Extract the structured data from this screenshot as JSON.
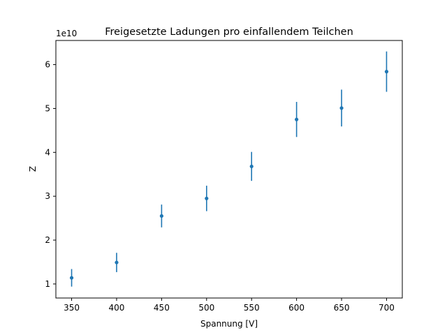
{
  "chart_data": {
    "type": "scatter",
    "title": "Freigesetzte Ladungen pro einfallendem Teilchen",
    "xlabel": "Spannung [V]",
    "ylabel": "Z",
    "y_offset_label": "1e10",
    "y_scale": 10000000000,
    "xlim": [
      332.5,
      717.5
    ],
    "ylim": [
      0.68,
      6.55
    ],
    "x_ticks": [
      350,
      400,
      450,
      500,
      550,
      600,
      650,
      700
    ],
    "x_tick_labels": [
      "350",
      "400",
      "450",
      "500",
      "550",
      "600",
      "650",
      "700"
    ],
    "y_ticks": [
      1,
      2,
      3,
      4,
      5,
      6
    ],
    "y_tick_labels": [
      "1",
      "2",
      "3",
      "4",
      "5",
      "6"
    ],
    "grid": false,
    "series": [
      {
        "color": "#1f77b4",
        "marker": "point",
        "errorbars": true,
        "x": [
          350,
          400,
          450,
          500,
          550,
          600,
          650,
          700
        ],
        "y": [
          1.14,
          1.49,
          2.55,
          2.95,
          3.68,
          4.75,
          5.01,
          5.84
        ],
        "yerr": [
          0.2,
          0.22,
          0.26,
          0.29,
          0.33,
          0.4,
          0.42,
          0.46
        ]
      }
    ]
  }
}
